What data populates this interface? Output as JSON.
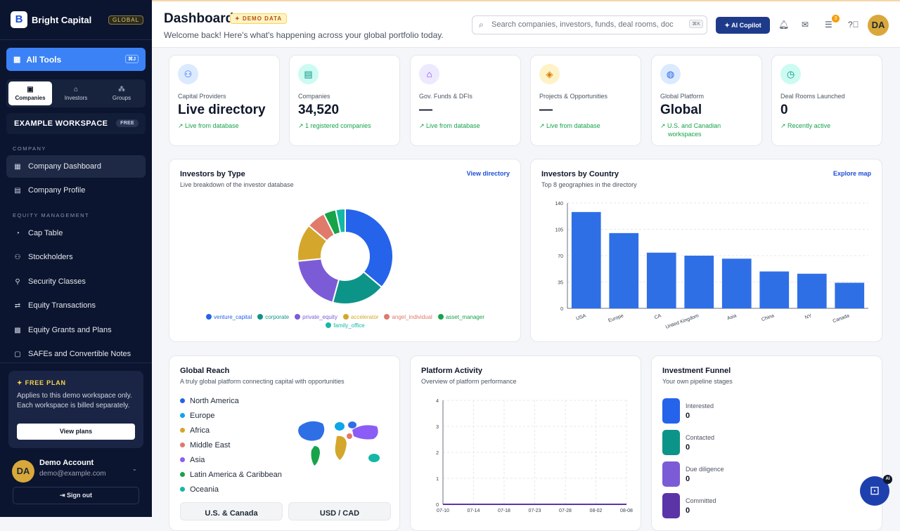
{
  "sidebar": {
    "brand": "Bright Capital",
    "logo_letter": "B",
    "brand_badge": "GLOBAL",
    "all_tools": "All Tools",
    "all_tools_kbd": "⌘J",
    "segments": [
      "Companies",
      "Investors",
      "Groups"
    ],
    "workspace": "EXAMPLE WORKSPACE",
    "workspace_badge": "FREE",
    "section_company": "COMPANY",
    "section_equity": "EQUITY MANAGEMENT",
    "nav": [
      "Company Dashboard",
      "Company Profile",
      "Cap Table",
      "Stockholders",
      "Security Classes",
      "Equity Transactions",
      "Equity Grants and Plans",
      "SAFEs and Convertible Notes"
    ],
    "plan": {
      "title": "FREE PLAN",
      "desc": "Applies to this demo workspace only. Each workspace is billed separately.",
      "button": "View plans"
    },
    "account": {
      "initials": "DA",
      "name": "Demo Account",
      "email": "demo@example.com",
      "signout": "Sign out"
    }
  },
  "header": {
    "title": "Dashboard",
    "badge": "DEMO DATA",
    "welcome": "Welcome back! Here's what's happening across your global portfolio today.",
    "search_placeholder": "Search companies, investors, funds, deal rooms, doc",
    "search_kbd": "⌘K",
    "copilot": "AI Copilot",
    "notif_count": "3",
    "avatar": "DA"
  },
  "stats": [
    {
      "label": "Capital Providers",
      "value": "Live directory",
      "trend": "Live from database",
      "color": "#2563eb",
      "bg": "#dbeafe",
      "icon": "users-icon"
    },
    {
      "label": "Companies",
      "value": "34,520",
      "trend": "1 registered companies",
      "color": "#0d9488",
      "bg": "#ccfbf1",
      "icon": "building-icon"
    },
    {
      "label": "Gov. Funds & DFIs",
      "value": "—",
      "trend": "Live from database",
      "color": "#7c3aed",
      "bg": "#ede9fe",
      "icon": "bank-icon"
    },
    {
      "label": "Projects & Opportunities",
      "value": "—",
      "trend": "Live from database",
      "color": "#d97706",
      "bg": "#fef3c7",
      "icon": "layers-icon"
    },
    {
      "label": "Global Platform",
      "value": "Global",
      "trend": "U.S. and Canadian workspaces",
      "color": "#2563eb",
      "bg": "#dbeafe",
      "icon": "globe-icon"
    },
    {
      "label": "Deal Rooms Launched",
      "value": "0",
      "trend": "Recently active",
      "color": "#0d9488",
      "bg": "#ccfbf1",
      "icon": "clock-icon"
    }
  ],
  "investors_by_type": {
    "title": "Investors by Type",
    "subtitle": "Live breakdown of the investor database",
    "link": "View directory"
  },
  "investors_by_country": {
    "title": "Investors by Country",
    "subtitle": "Top 8 geographies in the directory",
    "link": "Explore map"
  },
  "global_reach": {
    "title": "Global Reach",
    "subtitle": "A truly global platform connecting capital with opportunities",
    "regions": [
      {
        "name": "North America",
        "color": "#2563eb"
      },
      {
        "name": "Europe",
        "color": "#0ea5e9"
      },
      {
        "name": "Africa",
        "color": "#d4a72c"
      },
      {
        "name": "Middle East",
        "color": "#e07a6a"
      },
      {
        "name": "Asia",
        "color": "#8b5cf6"
      },
      {
        "name": "Latin America & Caribbean",
        "color": "#16a34a"
      },
      {
        "name": "Oceania",
        "color": "#14b8a6"
      }
    ],
    "buttons": [
      "U.S. & Canada",
      "USD / CAD"
    ]
  },
  "platform_activity": {
    "title": "Platform Activity",
    "subtitle": "Overview of platform performance"
  },
  "funnel": {
    "title": "Investment Funnel",
    "subtitle": "Your own pipeline stages",
    "stages": [
      {
        "name": "Interested",
        "value": "0",
        "color": "#2563eb"
      },
      {
        "name": "Contacted",
        "value": "0",
        "color": "#0d9488"
      },
      {
        "name": "Due diligence",
        "value": "0",
        "color": "#7c5cd6"
      },
      {
        "name": "Committed",
        "value": "0",
        "color": "#5b34a8"
      }
    ]
  },
  "chart_data": [
    {
      "type": "pie",
      "title": "Investors by Type",
      "labels": [
        "venture_capital",
        "corporate",
        "private_equity",
        "accelerator",
        "angel_individual",
        "asset_manager",
        "family_office"
      ],
      "values": [
        34,
        17,
        18,
        12,
        6,
        4,
        3
      ],
      "colors": [
        "#2563eb",
        "#0d9488",
        "#7c5cd6",
        "#d4a72c",
        "#e07a6a",
        "#16a34a",
        "#14b8a6"
      ]
    },
    {
      "type": "bar",
      "title": "Investors by Country",
      "categories": [
        "USA",
        "Europe",
        "CA",
        "United Kingdom",
        "Asia",
        "China",
        "NY",
        "Canada"
      ],
      "values": [
        128,
        100,
        74,
        70,
        66,
        49,
        46,
        34
      ],
      "ylim": [
        0,
        140
      ],
      "yticks": [
        0,
        35,
        70,
        105,
        140
      ],
      "color": "#2f6fe6",
      "grid": true
    },
    {
      "type": "line",
      "title": "Platform Activity",
      "x": [
        "07-10",
        "07-14",
        "07-18",
        "07-23",
        "07-28",
        "08-02",
        "08-08"
      ],
      "values": [
        0,
        0,
        0,
        0,
        0,
        0,
        0
      ],
      "ylim": [
        0,
        4
      ],
      "yticks": [
        0,
        1,
        2,
        3,
        4
      ],
      "color": "#5b34a8",
      "grid": true
    }
  ]
}
